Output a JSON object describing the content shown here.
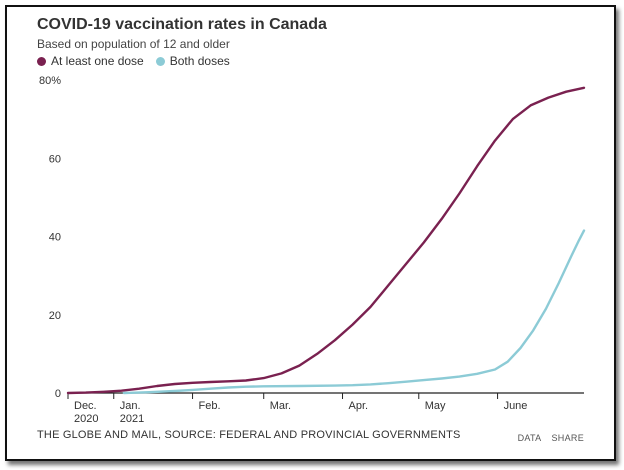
{
  "header": {
    "title": "COVID-19 vaccination rates in Canada",
    "subtitle": "Based on population of 12 and older"
  },
  "legend": [
    {
      "label": "At least one dose",
      "color": "#7a2150"
    },
    {
      "label": "Both doses",
      "color": "#8ccbd6"
    }
  ],
  "footer": {
    "source": "THE GLOBE AND MAIL, SOURCE: FEDERAL AND PROVINCIAL GOVERNMENTS",
    "data_label": "DATA",
    "share_label": "SHARE"
  },
  "chart_data": {
    "type": "line",
    "title": "COVID-19 vaccination rates in Canada",
    "subtitle": "Based on population of 12 and older",
    "ylim": [
      0,
      80
    ],
    "y_ticks": [
      "0",
      "20",
      "40",
      "60",
      "80%"
    ],
    "x_range": [
      "2020-12-14",
      "2021-07-05"
    ],
    "x_ticks": [
      {
        "date": "2020-12-14",
        "line1": "Dec.",
        "line2": "2020"
      },
      {
        "date": "2021-01-01",
        "line1": "Jan.",
        "line2": "2021"
      },
      {
        "date": "2021-02-01",
        "line1": "Feb.",
        "line2": ""
      },
      {
        "date": "2021-03-01",
        "line1": "Mar.",
        "line2": ""
      },
      {
        "date": "2021-04-01",
        "line1": "Apr.",
        "line2": ""
      },
      {
        "date": "2021-05-01",
        "line1": "May",
        "line2": ""
      },
      {
        "date": "2021-06-01",
        "line1": "June",
        "line2": ""
      }
    ],
    "grid": false,
    "legend_position": "top-left",
    "series": [
      {
        "name": "At least one dose",
        "color": "#7a2150",
        "points": [
          [
            "2020-12-14",
            0.0
          ],
          [
            "2020-12-21",
            0.1
          ],
          [
            "2020-12-28",
            0.3
          ],
          [
            "2021-01-04",
            0.6
          ],
          [
            "2021-01-11",
            1.1
          ],
          [
            "2021-01-18",
            1.8
          ],
          [
            "2021-01-25",
            2.3
          ],
          [
            "2021-02-01",
            2.6
          ],
          [
            "2021-02-08",
            2.8
          ],
          [
            "2021-02-15",
            3.0
          ],
          [
            "2021-02-22",
            3.2
          ],
          [
            "2021-03-01",
            3.8
          ],
          [
            "2021-03-08",
            5.0
          ],
          [
            "2021-03-15",
            7.0
          ],
          [
            "2021-03-22",
            10.0
          ],
          [
            "2021-03-29",
            13.5
          ],
          [
            "2021-04-05",
            17.5
          ],
          [
            "2021-04-12",
            22.0
          ],
          [
            "2021-04-19",
            27.5
          ],
          [
            "2021-04-26",
            33.0
          ],
          [
            "2021-05-03",
            38.5
          ],
          [
            "2021-05-10",
            44.5
          ],
          [
            "2021-05-17",
            51.0
          ],
          [
            "2021-05-24",
            58.0
          ],
          [
            "2021-05-31",
            64.5
          ],
          [
            "2021-06-07",
            70.0
          ],
          [
            "2021-06-14",
            73.5
          ],
          [
            "2021-06-21",
            75.5
          ],
          [
            "2021-06-28",
            77.0
          ],
          [
            "2021-07-05",
            78.0
          ]
        ]
      },
      {
        "name": "Both doses",
        "color": "#8ccbd6",
        "points": [
          [
            "2021-01-05",
            0.0
          ],
          [
            "2021-01-15",
            0.2
          ],
          [
            "2021-01-25",
            0.5
          ],
          [
            "2021-02-01",
            0.8
          ],
          [
            "2021-02-08",
            1.1
          ],
          [
            "2021-02-15",
            1.4
          ],
          [
            "2021-02-22",
            1.6
          ],
          [
            "2021-03-01",
            1.7
          ],
          [
            "2021-03-15",
            1.8
          ],
          [
            "2021-03-29",
            1.9
          ],
          [
            "2021-04-05",
            2.0
          ],
          [
            "2021-04-12",
            2.2
          ],
          [
            "2021-04-19",
            2.5
          ],
          [
            "2021-04-26",
            2.9
          ],
          [
            "2021-05-03",
            3.3
          ],
          [
            "2021-05-10",
            3.7
          ],
          [
            "2021-05-17",
            4.2
          ],
          [
            "2021-05-24",
            4.9
          ],
          [
            "2021-05-31",
            6.0
          ],
          [
            "2021-06-05",
            8.0
          ],
          [
            "2021-06-10",
            11.5
          ],
          [
            "2021-06-15",
            16.0
          ],
          [
            "2021-06-20",
            21.5
          ],
          [
            "2021-06-25",
            28.0
          ],
          [
            "2021-06-30",
            35.0
          ],
          [
            "2021-07-03",
            39.0
          ],
          [
            "2021-07-05",
            41.5
          ]
        ]
      }
    ]
  }
}
